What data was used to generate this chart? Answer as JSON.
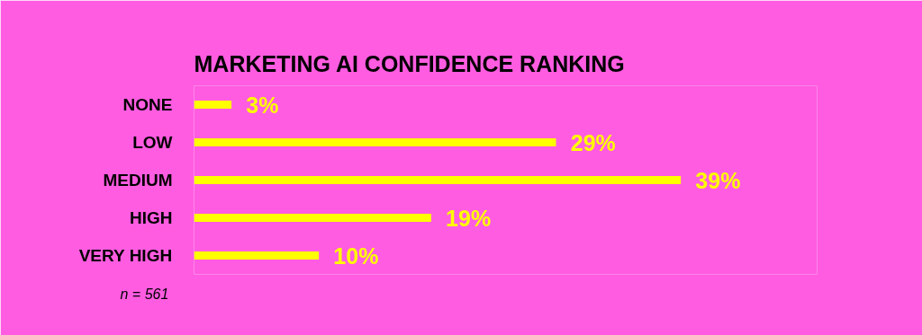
{
  "chart_data": {
    "type": "bar",
    "orientation": "horizontal",
    "title": "MARKETING AI CONFIDENCE RANKING",
    "categories": [
      "NONE",
      "LOW",
      "MEDIUM",
      "HIGH",
      "VERY HIGH"
    ],
    "values": [
      3,
      29,
      39,
      19,
      10
    ],
    "value_labels": [
      "3%",
      "29%",
      "39%",
      "19%",
      "10%"
    ],
    "color": "#ffff00",
    "annotations": [
      "n = 561"
    ],
    "grid": false
  }
}
